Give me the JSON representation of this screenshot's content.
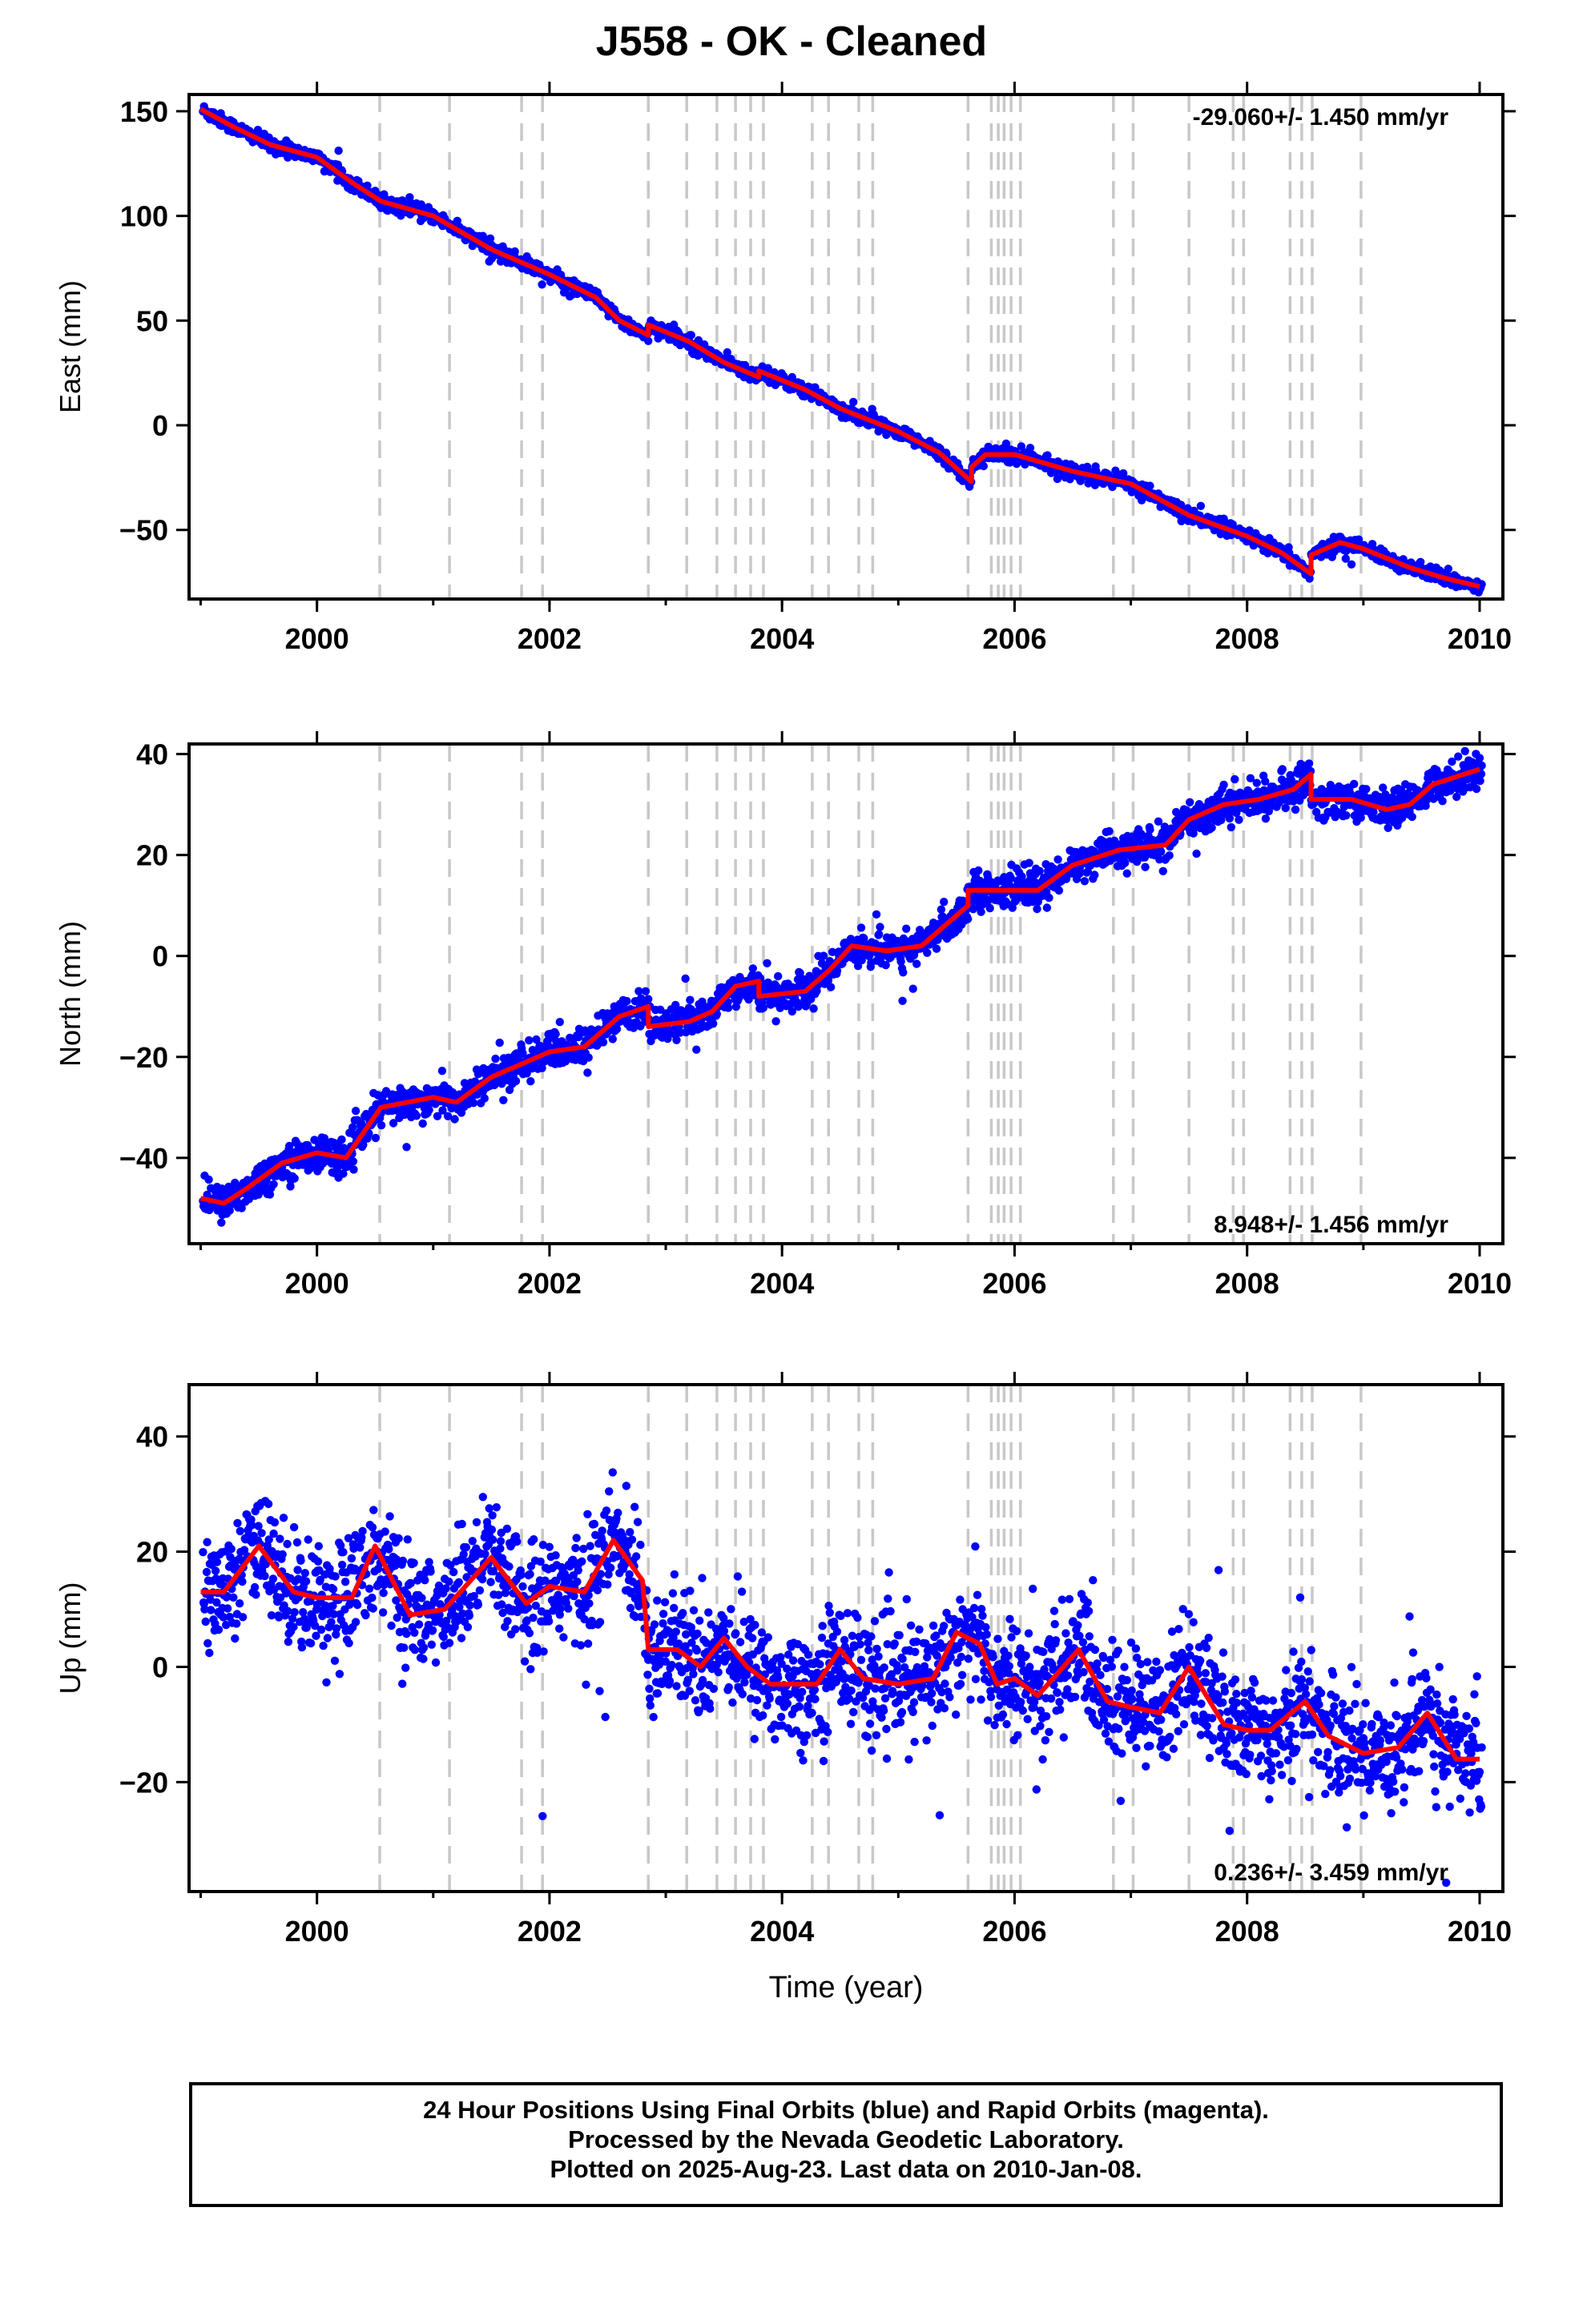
{
  "title": "J558  - OK - Cleaned",
  "footer": {
    "line1": "24 Hour Positions Using Final Orbits (blue) and Rapid Orbits (magenta).",
    "line2": "Processed by the Nevada Geodetic Laboratory.",
    "line3": "Plotted on 2025-Aug-23. Last data on 2010-Jan-08."
  },
  "colors": {
    "points": "#0000ff",
    "model": "#ff0000",
    "offsets": "#c8c8c8",
    "frame": "#000000"
  },
  "chart_data": [
    {
      "type": "scatter",
      "ylabel": "East (mm)",
      "xlim": [
        1998.9,
        2010.2
      ],
      "ylim": [
        -83,
        158
      ],
      "yticks": [
        -50,
        0,
        50,
        100,
        150
      ],
      "xticks": [
        2000,
        2002,
        2004,
        2006,
        2008,
        2010
      ],
      "rate": "-29.060+/- 1.450 mm/yr",
      "rate_position": "top-right",
      "scatter_sd": 1.6,
      "model": [
        [
          1999.0,
          151
        ],
        [
          1999.3,
          142
        ],
        [
          1999.6,
          134
        ],
        [
          2000.0,
          128
        ],
        [
          2000.3,
          116
        ],
        [
          2000.55,
          107
        ],
        [
          2001.0,
          100
        ],
        [
          2001.5,
          84
        ],
        [
          2002.0,
          72
        ],
        [
          2002.4,
          61
        ],
        [
          2002.6,
          50
        ],
        [
          2002.85,
          43
        ],
        [
          2002.85,
          48
        ],
        [
          2003.2,
          40
        ],
        [
          2003.5,
          30
        ],
        [
          2003.8,
          23
        ],
        [
          2003.8,
          26
        ],
        [
          2004.2,
          17
        ],
        [
          2004.5,
          8
        ],
        [
          2005.0,
          -3
        ],
        [
          2005.35,
          -13
        ],
        [
          2005.63,
          -27
        ],
        [
          2005.63,
          -20
        ],
        [
          2005.75,
          -14
        ],
        [
          2006.0,
          -14
        ],
        [
          2006.5,
          -22
        ],
        [
          2007.0,
          -28
        ],
        [
          2007.5,
          -43
        ],
        [
          2008.0,
          -53
        ],
        [
          2008.3,
          -61
        ],
        [
          2008.55,
          -71
        ],
        [
          2008.55,
          -62
        ],
        [
          2008.8,
          -56
        ],
        [
          2009.0,
          -59
        ],
        [
          2009.4,
          -68
        ],
        [
          2009.7,
          -73
        ],
        [
          2010.0,
          -77
        ]
      ],
      "offsets": [
        2000.54,
        2001.14,
        2001.76,
        2001.94,
        2002.85,
        2003.18,
        2003.44,
        2003.6,
        2003.73,
        2003.84,
        2004.26,
        2004.4,
        2004.66,
        2004.78,
        2005.6,
        2005.8,
        2005.86,
        2005.91,
        2005.97,
        2006.05,
        2006.85,
        2007.02,
        2007.5,
        2007.88,
        2007.97,
        2008.37,
        2008.47,
        2008.56,
        2008.98
      ]
    },
    {
      "type": "scatter",
      "ylabel": "North (mm)",
      "xlim": [
        1998.9,
        2010.2
      ],
      "ylim": [
        -57,
        42
      ],
      "yticks": [
        -40,
        -20,
        0,
        20,
        40
      ],
      "xticks": [
        2000,
        2002,
        2004,
        2006,
        2008,
        2010
      ],
      "rate": "8.948+/- 1.456 mm/yr",
      "rate_position": "bottom-right",
      "scatter_sd": 1.7,
      "model": [
        [
          1999.0,
          -48
        ],
        [
          1999.2,
          -49
        ],
        [
          1999.4,
          -46
        ],
        [
          1999.7,
          -41
        ],
        [
          2000.0,
          -39
        ],
        [
          2000.25,
          -40
        ],
        [
          2000.55,
          -30
        ],
        [
          2001.0,
          -28
        ],
        [
          2001.2,
          -29
        ],
        [
          2001.5,
          -24
        ],
        [
          2001.8,
          -21
        ],
        [
          2002.0,
          -19
        ],
        [
          2002.3,
          -18
        ],
        [
          2002.6,
          -12
        ],
        [
          2002.85,
          -10
        ],
        [
          2002.85,
          -14
        ],
        [
          2003.2,
          -13
        ],
        [
          2003.4,
          -11
        ],
        [
          2003.6,
          -6
        ],
        [
          2003.8,
          -5
        ],
        [
          2003.8,
          -8
        ],
        [
          2004.2,
          -7
        ],
        [
          2004.4,
          -3
        ],
        [
          2004.6,
          2
        ],
        [
          2004.9,
          1
        ],
        [
          2005.2,
          2
        ],
        [
          2005.6,
          10
        ],
        [
          2005.6,
          13
        ],
        [
          2005.8,
          13
        ],
        [
          2006.2,
          13
        ],
        [
          2006.5,
          18
        ],
        [
          2006.9,
          21
        ],
        [
          2007.3,
          22
        ],
        [
          2007.5,
          27
        ],
        [
          2007.8,
          30
        ],
        [
          2008.1,
          31
        ],
        [
          2008.4,
          33
        ],
        [
          2008.55,
          36
        ],
        [
          2008.55,
          31
        ],
        [
          2008.9,
          31
        ],
        [
          2009.2,
          29
        ],
        [
          2009.4,
          30
        ],
        [
          2009.6,
          34
        ],
        [
          2010.0,
          37
        ]
      ],
      "offsets": [
        2000.54,
        2001.14,
        2001.76,
        2001.94,
        2002.85,
        2003.18,
        2003.44,
        2003.6,
        2003.73,
        2003.84,
        2004.26,
        2004.4,
        2004.66,
        2004.78,
        2005.6,
        2005.8,
        2005.86,
        2005.91,
        2005.97,
        2006.05,
        2006.85,
        2007.02,
        2007.5,
        2007.88,
        2007.97,
        2008.37,
        2008.47,
        2008.56,
        2008.98
      ]
    },
    {
      "type": "scatter",
      "ylabel": "Up (mm)",
      "xlim": [
        1998.9,
        2010.2
      ],
      "ylim": [
        -39,
        49
      ],
      "yticks": [
        -20,
        0,
        20,
        40
      ],
      "xticks": [
        2000,
        2002,
        2004,
        2006,
        2008,
        2010
      ],
      "xlabel": "Time (year)",
      "rate": "0.236+/- 3.459 mm/yr",
      "rate_position": "bottom-right",
      "scatter_sd": 5.0,
      "model": [
        [
          1999.0,
          13
        ],
        [
          1999.2,
          13
        ],
        [
          1999.5,
          21
        ],
        [
          1999.8,
          13
        ],
        [
          2000.0,
          12
        ],
        [
          2000.3,
          12
        ],
        [
          2000.5,
          21
        ],
        [
          2000.8,
          9
        ],
        [
          2001.1,
          10
        ],
        [
          2001.5,
          19
        ],
        [
          2001.8,
          11
        ],
        [
          2002.0,
          14
        ],
        [
          2002.3,
          13
        ],
        [
          2002.55,
          22
        ],
        [
          2002.8,
          15
        ],
        [
          2002.85,
          3
        ],
        [
          2003.1,
          3
        ],
        [
          2003.3,
          0
        ],
        [
          2003.5,
          5
        ],
        [
          2003.7,
          0
        ],
        [
          2003.9,
          -3
        ],
        [
          2004.3,
          -3
        ],
        [
          2004.5,
          3
        ],
        [
          2004.7,
          -2
        ],
        [
          2005.0,
          -3
        ],
        [
          2005.3,
          -2
        ],
        [
          2005.5,
          6
        ],
        [
          2005.7,
          4
        ],
        [
          2005.85,
          -3
        ],
        [
          2006.0,
          -2
        ],
        [
          2006.2,
          -5
        ],
        [
          2006.55,
          3
        ],
        [
          2006.8,
          -6
        ],
        [
          2007.0,
          -7
        ],
        [
          2007.25,
          -8
        ],
        [
          2007.5,
          0
        ],
        [
          2007.8,
          -10
        ],
        [
          2008.0,
          -11
        ],
        [
          2008.2,
          -11
        ],
        [
          2008.5,
          -6
        ],
        [
          2008.7,
          -12
        ],
        [
          2009.0,
          -15
        ],
        [
          2009.3,
          -14
        ],
        [
          2009.55,
          -8
        ],
        [
          2009.8,
          -16
        ],
        [
          2010.0,
          -16
        ]
      ],
      "offsets": [
        2000.54,
        2001.14,
        2001.76,
        2001.94,
        2002.85,
        2003.18,
        2003.44,
        2003.6,
        2003.73,
        2003.84,
        2004.26,
        2004.4,
        2004.66,
        2004.78,
        2005.6,
        2005.8,
        2005.86,
        2005.91,
        2005.97,
        2006.05,
        2006.85,
        2007.02,
        2007.5,
        2007.88,
        2007.97,
        2008.37,
        2008.47,
        2008.56,
        2008.98
      ]
    }
  ]
}
